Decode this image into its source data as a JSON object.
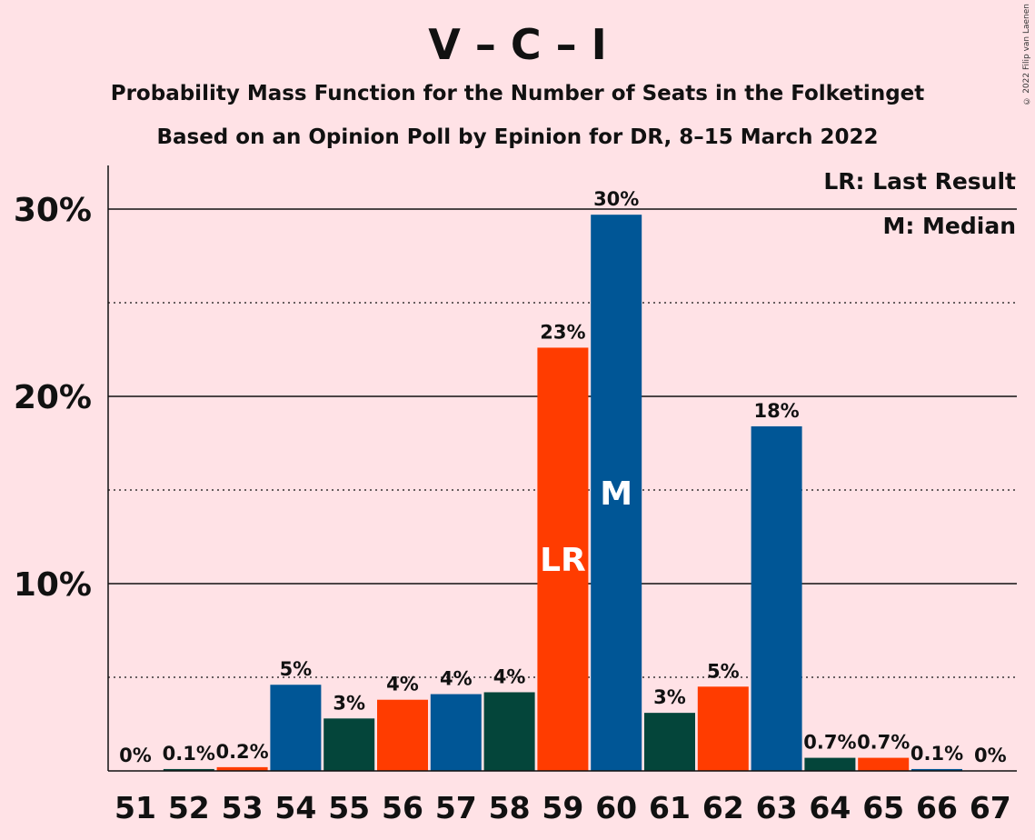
{
  "title": "V – C – I",
  "subtitle": "Probability Mass Function for the Number of Seats in the Folketinget",
  "subtitle2": "Based on an Opinion Poll by Epinion for DR, 8–15 March 2022",
  "copyright": "© 2022 Filip van Laenen",
  "legend": {
    "last_result": "LR: Last Result",
    "median": "M: Median"
  },
  "colors": {
    "background": "#FFE2E6",
    "blue": "#005696",
    "green": "#04453A",
    "orange": "#FF3C00"
  },
  "chart_data": {
    "type": "bar",
    "categories": [
      "51",
      "52",
      "53",
      "54",
      "55",
      "56",
      "57",
      "58",
      "59",
      "60",
      "61",
      "62",
      "63",
      "64",
      "65",
      "66",
      "67"
    ],
    "values": [
      0,
      0.1,
      0.2,
      4.6,
      2.8,
      3.8,
      4.1,
      4.2,
      22.6,
      29.7,
      3.1,
      4.5,
      18.4,
      0.7,
      0.7,
      0.1,
      0
    ],
    "labels": [
      "0%",
      "0.1%",
      "0.2%",
      "5%",
      "3%",
      "4%",
      "4%",
      "4%",
      "23%",
      "30%",
      "3%",
      "5%",
      "18%",
      "0.7%",
      "0.7%",
      "0.1%",
      "0%"
    ],
    "bar_colors": [
      "blue",
      "green",
      "orange",
      "blue",
      "green",
      "orange",
      "blue",
      "green",
      "orange",
      "blue",
      "green",
      "orange",
      "blue",
      "green",
      "orange",
      "blue",
      "green"
    ],
    "markers": {
      "59": "LR",
      "60": "M"
    },
    "yticks": [
      10,
      20,
      30
    ],
    "ytick_labels": [
      "10%",
      "20%",
      "30%"
    ],
    "minor_gridlines": [
      5,
      15,
      25
    ],
    "ylim": [
      0,
      32.5
    ],
    "grid": true,
    "legend_position": "top-right"
  }
}
